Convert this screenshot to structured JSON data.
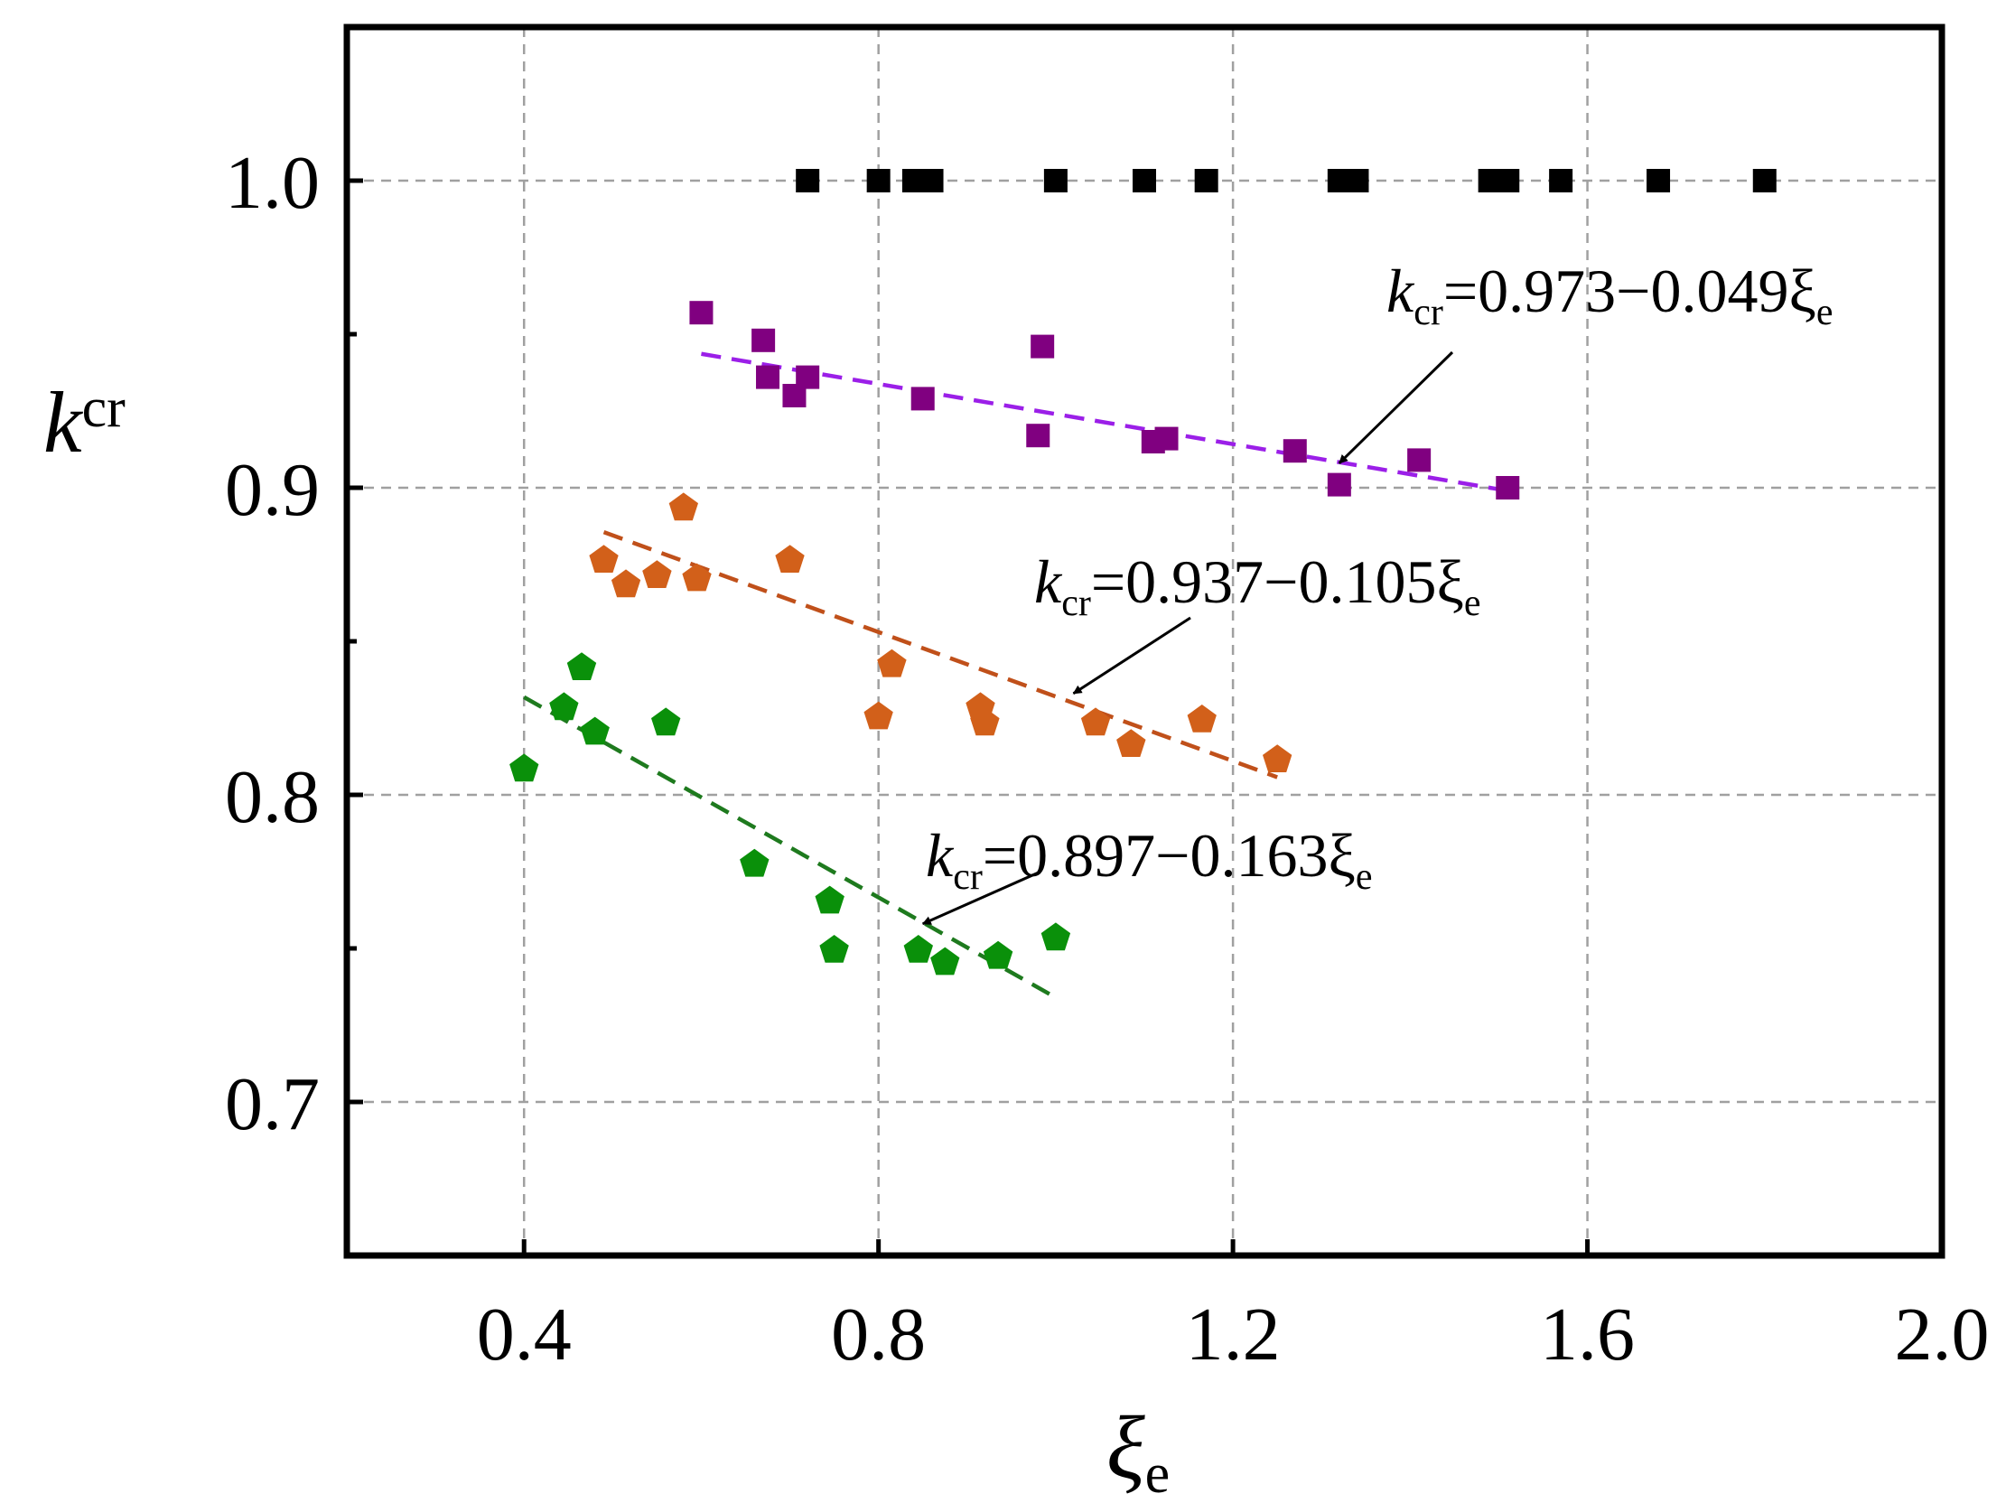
{
  "chart_data": {
    "type": "scatter",
    "title": "",
    "xlabel": {
      "symbol": "ξ",
      "subscript": "e"
    },
    "ylabel": {
      "symbol": "k",
      "subscript": "cr"
    },
    "xlim": [
      0.2,
      2.0
    ],
    "ylim": [
      0.65,
      1.05
    ],
    "xticks": [
      0.4,
      0.8,
      1.2,
      1.6,
      2.0
    ],
    "xtick_labels": [
      "0.4",
      "0.8",
      "1.2",
      "1.6",
      "2.0"
    ],
    "yticks": [
      0.7,
      0.8,
      0.9,
      1.0
    ],
    "ytick_labels": [
      "0.7",
      "0.8",
      "0.9",
      "1.0"
    ],
    "y_minor_ticks": [
      0.75,
      0.85,
      0.95
    ],
    "grid": true,
    "series": [
      {
        "name": "black",
        "marker": "square",
        "color": "#000000",
        "x": [
          0.72,
          0.8,
          0.84,
          0.86,
          1.0,
          1.1,
          1.17,
          1.32,
          1.34,
          1.49,
          1.51,
          1.57,
          1.68,
          1.8
        ],
        "y": [
          1.0,
          1.0,
          1.0,
          1.0,
          1.0,
          1.0,
          1.0,
          1.0,
          1.0,
          1.0,
          1.0,
          1.0,
          1.0,
          1.0
        ]
      },
      {
        "name": "purple",
        "marker": "square",
        "color": "#800080",
        "fit_color": "#9B1FE8",
        "x": [
          0.6,
          0.67,
          0.675,
          0.705,
          0.72,
          0.85,
          0.98,
          0.985,
          1.11,
          1.125,
          1.27,
          1.32,
          1.41,
          1.51
        ],
        "y": [
          0.957,
          0.948,
          0.936,
          0.93,
          0.936,
          0.929,
          0.917,
          0.946,
          0.915,
          0.916,
          0.912,
          0.901,
          0.909,
          0.9
        ],
        "fit": {
          "intercept": 0.973,
          "slope": -0.049,
          "x_range": [
            0.6,
            1.51
          ]
        }
      },
      {
        "name": "orange",
        "marker": "pentagon",
        "color": "#D2601A",
        "fit_color": "#C0501A",
        "x": [
          0.49,
          0.515,
          0.55,
          0.58,
          0.595,
          0.7,
          0.8,
          0.815,
          0.915,
          0.92,
          1.045,
          1.085,
          1.165,
          1.25
        ],
        "y": [
          0.877,
          0.869,
          0.872,
          0.894,
          0.871,
          0.877,
          0.826,
          0.843,
          0.829,
          0.824,
          0.824,
          0.817,
          0.825,
          0.812
        ],
        "fit": {
          "intercept": 0.937,
          "slope": -0.105,
          "x_range": [
            0.49,
            1.25
          ]
        }
      },
      {
        "name": "green",
        "marker": "pentagon",
        "color": "#0A900A",
        "fit_color": "#1E7A1E",
        "x": [
          0.4,
          0.445,
          0.465,
          0.48,
          0.56,
          0.66,
          0.745,
          0.75,
          0.845,
          0.875,
          0.935,
          1.0
        ],
        "y": [
          0.809,
          0.829,
          0.842,
          0.821,
          0.824,
          0.778,
          0.766,
          0.75,
          0.75,
          0.746,
          0.748,
          0.754
        ],
        "fit": {
          "intercept": 0.897,
          "slope": -0.163,
          "x_range": [
            0.4,
            1.0
          ]
        }
      }
    ],
    "annotations": [
      {
        "series": "purple",
        "pre": "k",
        "sub": "cr",
        "eq": "=0.973−0.049ξ",
        "sub2": "e",
        "arrow_to": [
          1.32,
          0.908
        ]
      },
      {
        "series": "orange",
        "pre": "k",
        "sub": "cr",
        "eq": "=0.937−0.105ξ",
        "sub2": "e",
        "arrow_to": [
          1.02,
          0.833
        ]
      },
      {
        "series": "green",
        "pre": "k",
        "sub": "cr",
        "eq": "=0.897−0.163ξ",
        "sub2": "e",
        "arrow_to": [
          0.85,
          0.758
        ]
      }
    ]
  }
}
